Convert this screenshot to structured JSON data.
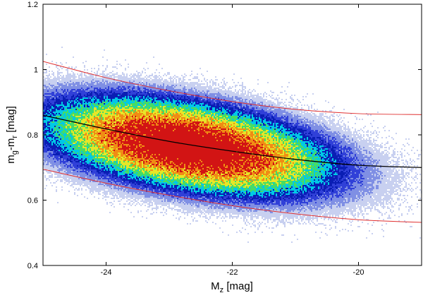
{
  "chart_data": {
    "type": "heatmap",
    "title": "",
    "xlabel": {
      "base": "M",
      "sub": "z",
      "unit": " [mag]"
    },
    "ylabel": {
      "base1": "m",
      "sub1": "g",
      "dash": "-m",
      "sub2": "r",
      "unit": " [mag]"
    },
    "xlim": [
      -25,
      -19
    ],
    "ylim": [
      0.4,
      1.2
    ],
    "x_ticks": [
      -24,
      -22,
      -20
    ],
    "y_ticks": [
      0.4,
      0.6,
      0.8,
      1.0,
      1.2
    ],
    "y_tick_labels": [
      "0.4",
      "0.6",
      "0.8",
      "1",
      "1.2"
    ],
    "grid": false,
    "density": {
      "center_x": -22.7,
      "center_y": 0.765,
      "spread_x": 0.95,
      "spread_y": 0.062,
      "correlation": -0.45,
      "peak_count": 100,
      "colormap": [
        "#c8d0f0",
        "#7f8fe4",
        "#3040d8",
        "#0a1eb4",
        "#00c8e6",
        "#46dc64",
        "#e6e628",
        "#f08c14",
        "#d21414"
      ]
    },
    "series": [
      {
        "kind": "fit",
        "color": "#000000",
        "points": [
          [
            -25.0,
            0.86
          ],
          [
            -24.0,
            0.818
          ],
          [
            -23.0,
            0.78
          ],
          [
            -22.0,
            0.75
          ],
          [
            -21.0,
            0.725
          ],
          [
            -20.0,
            0.707
          ],
          [
            -19.0,
            0.7
          ]
        ]
      },
      {
        "kind": "upper-bound",
        "color": "#e03030",
        "points": [
          [
            -25.0,
            1.025
          ],
          [
            -24.0,
            0.975
          ],
          [
            -23.0,
            0.935
          ],
          [
            -22.0,
            0.902
          ],
          [
            -21.0,
            0.878
          ],
          [
            -20.0,
            0.865
          ],
          [
            -19.0,
            0.862
          ]
        ]
      },
      {
        "kind": "lower-bound",
        "color": "#e03030",
        "points": [
          [
            -25.0,
            0.695
          ],
          [
            -24.0,
            0.652
          ],
          [
            -23.0,
            0.615
          ],
          [
            -22.0,
            0.583
          ],
          [
            -21.0,
            0.558
          ],
          [
            -20.0,
            0.54
          ],
          [
            -19.0,
            0.532
          ]
        ]
      }
    ]
  }
}
